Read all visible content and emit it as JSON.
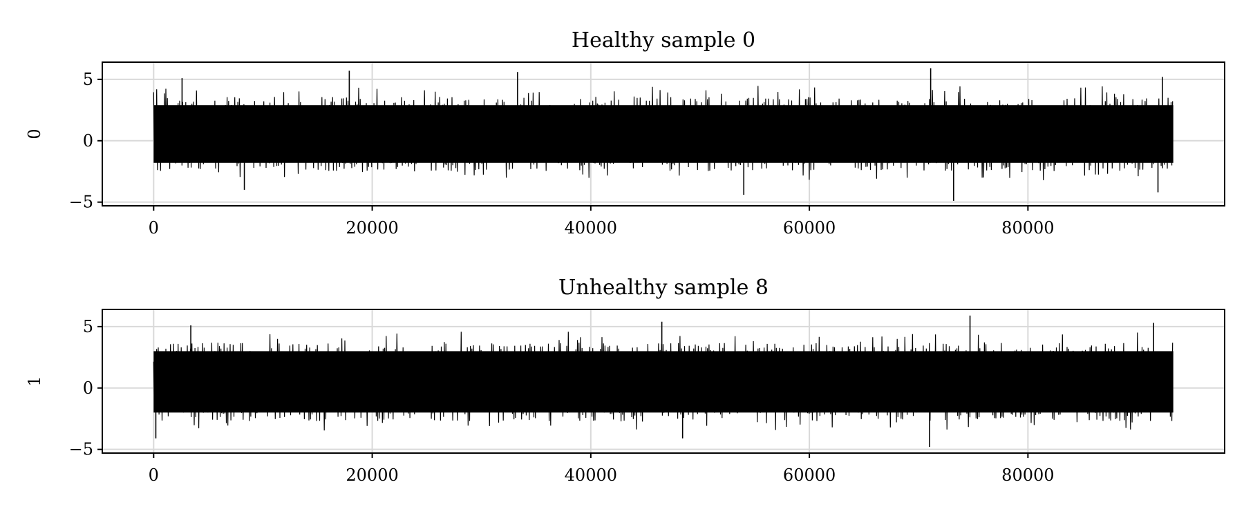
{
  "chart_data": [
    {
      "type": "line",
      "title": "Healthy sample 0",
      "xlabel": "",
      "ylabel": "0",
      "xlim": [
        -4700,
        98000
      ],
      "ylim": [
        -5.3,
        6.4
      ],
      "xticks": [
        0,
        20000,
        40000,
        60000,
        80000
      ],
      "xtick_labels": [
        "0",
        "20000",
        "40000",
        "60000",
        "80000"
      ],
      "yticks": [
        -5,
        0,
        5
      ],
      "ytick_labels": [
        "−5",
        "0",
        "5"
      ],
      "grid": true,
      "x_range": [
        0,
        93300
      ],
      "envelope": {
        "upper_typical": 3.3,
        "lower_typical": -2.2,
        "mean": 0.5
      },
      "peaks": [
        {
          "x": 2600,
          "y": 5.1
        },
        {
          "x": 17900,
          "y": 5.7
        },
        {
          "x": 33300,
          "y": 5.6
        },
        {
          "x": 71100,
          "y": 5.9
        },
        {
          "x": 92300,
          "y": 5.2
        },
        {
          "x": 8300,
          "y": -4.0
        },
        {
          "x": 54000,
          "y": -4.4
        },
        {
          "x": 73200,
          "y": -4.9
        },
        {
          "x": 91900,
          "y": -4.2
        }
      ],
      "series": [
        {
          "color": "#000000"
        }
      ]
    },
    {
      "type": "line",
      "title": "Unhealthy sample 8",
      "xlabel": "",
      "ylabel": "1",
      "xlim": [
        -4700,
        98000
      ],
      "ylim": [
        -5.3,
        6.4
      ],
      "xticks": [
        0,
        20000,
        40000,
        60000,
        80000
      ],
      "xtick_labels": [
        "0",
        "20000",
        "40000",
        "60000",
        "80000"
      ],
      "yticks": [
        -5,
        0,
        5
      ],
      "ytick_labels": [
        "−5",
        "0",
        "5"
      ],
      "grid": true,
      "x_range": [
        0,
        93300
      ],
      "envelope": {
        "upper_typical": 3.4,
        "lower_typical": -2.4,
        "mean": 0.5
      },
      "peaks": [
        {
          "x": 3400,
          "y": 5.1
        },
        {
          "x": 46500,
          "y": 5.4
        },
        {
          "x": 74700,
          "y": 5.9
        },
        {
          "x": 91500,
          "y": 5.3
        },
        {
          "x": 200,
          "y": -4.1
        },
        {
          "x": 48400,
          "y": -4.1
        },
        {
          "x": 71000,
          "y": -4.8
        }
      ],
      "series": [
        {
          "color": "#000000"
        }
      ]
    }
  ],
  "colors": {
    "line": "#000000",
    "grid": "#d9d9d9",
    "frame": "#000000"
  }
}
